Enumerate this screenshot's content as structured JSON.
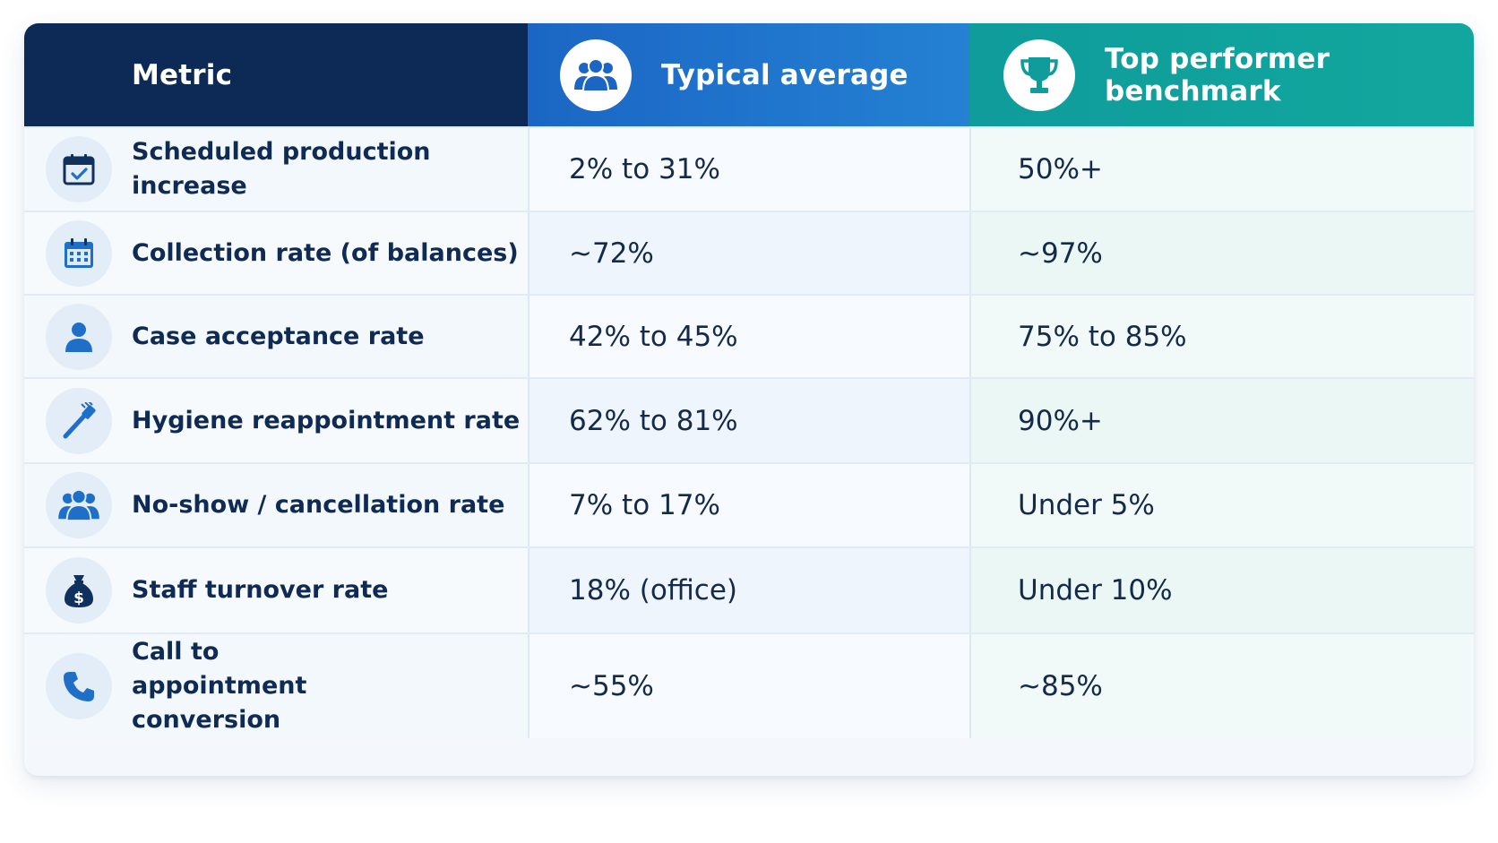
{
  "header": {
    "metric": "Metric",
    "typical": "Typical average",
    "top": "Top performer benchmark",
    "typical_icon": "people-group-icon",
    "top_icon": "trophy-icon"
  },
  "rows": [
    {
      "metric": "Scheduled production increase",
      "typical": "2% to 31%",
      "top": "50%+",
      "icon": "calendar-check-icon"
    },
    {
      "metric": "Collection rate (of balances)",
      "typical": "~72%",
      "top": "~97%",
      "icon": "calendar-icon"
    },
    {
      "metric": "Case acceptance rate",
      "typical": "42% to 45%",
      "top": "75% to 85%",
      "icon": "person-icon"
    },
    {
      "metric": "Hygiene reappointment rate",
      "typical": "62% to 81%",
      "top": "90%+",
      "icon": "toothbrush-icon"
    },
    {
      "metric": "No-show / cancellation rate",
      "typical": "7% to 17%",
      "top": "Under 5%",
      "icon": "people-group-icon"
    },
    {
      "metric": "Staff turnover rate",
      "typical": "18% (office)",
      "top": "Under 10%",
      "icon": "money-bag-icon"
    },
    {
      "metric": "Call to appointment conversion",
      "typical": "~55%",
      "top": "~85%",
      "icon": "phone-icon"
    }
  ],
  "colors": {
    "metric_header": "#0d2a57",
    "typical_header": "#1f73cc",
    "top_header": "#10a19c",
    "icon_blue": "#1f6fc9",
    "icon_navy": "#10305e"
  }
}
